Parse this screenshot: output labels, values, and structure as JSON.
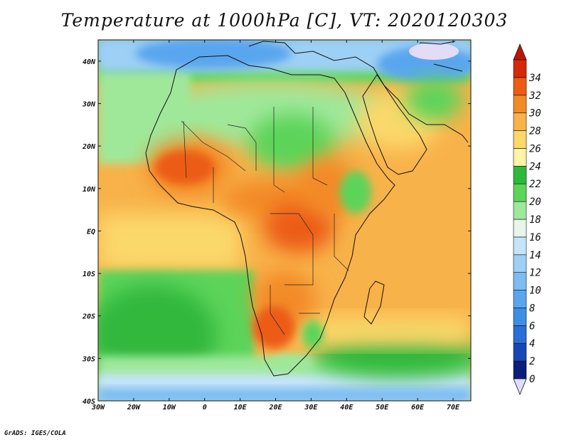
{
  "title": "Temperature at 1000hPa [C], VT: 2020120303",
  "credit": "GrADS: IGES/COLA",
  "map": {
    "lon_range": [
      -30,
      75
    ],
    "lat_range": [
      -40,
      45
    ],
    "lon_ticks": [
      {
        "value": -30,
        "label": "30W"
      },
      {
        "value": -20,
        "label": "20W"
      },
      {
        "value": -10,
        "label": "10W"
      },
      {
        "value": 0,
        "label": "0"
      },
      {
        "value": 10,
        "label": "10E"
      },
      {
        "value": 20,
        "label": "20E"
      },
      {
        "value": 30,
        "label": "30E"
      },
      {
        "value": 40,
        "label": "40E"
      },
      {
        "value": 50,
        "label": "50E"
      },
      {
        "value": 60,
        "label": "60E"
      },
      {
        "value": 70,
        "label": "70E"
      }
    ],
    "lat_ticks": [
      {
        "value": 40,
        "label": "40N"
      },
      {
        "value": 30,
        "label": "30N"
      },
      {
        "value": 20,
        "label": "20N"
      },
      {
        "value": 10,
        "label": "10N"
      },
      {
        "value": 0,
        "label": "EQ"
      },
      {
        "value": -10,
        "label": "10S"
      },
      {
        "value": -20,
        "label": "20S"
      },
      {
        "value": -30,
        "label": "30S"
      },
      {
        "value": -40,
        "label": "40S"
      }
    ]
  },
  "colorbar": {
    "levels": [
      "0",
      "2",
      "4",
      "6",
      "8",
      "10",
      "12",
      "14",
      "16",
      "18",
      "20",
      "22",
      "24",
      "26",
      "28",
      "30",
      "32",
      "34"
    ],
    "colors": [
      "#0b1e7a",
      "#1846b4",
      "#2a6ed6",
      "#3f8ee6",
      "#5aa6ee",
      "#7cbcf2",
      "#9ed0f6",
      "#c4e4fa",
      "#e6f6ea",
      "#9fe89a",
      "#5cd45a",
      "#30b83c",
      "#fff4a8",
      "#fbd86a",
      "#f8b24a",
      "#f38a26",
      "#ec5c14",
      "#d42a08"
    ],
    "below_color": "#e2dcf7",
    "above_color": "#c01404"
  }
}
